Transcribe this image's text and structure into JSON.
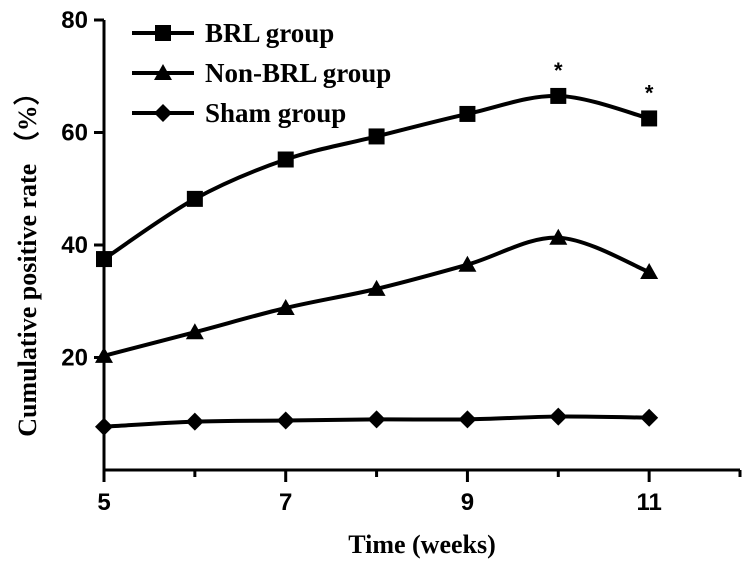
{
  "chart_data": {
    "type": "line",
    "title": "",
    "xlabel": "Time (weeks)",
    "ylabel": "Cumulative positive rate （%）",
    "xlim": [
      5,
      12
    ],
    "ylim": [
      0,
      80
    ],
    "xticks": [
      5,
      7,
      9,
      11
    ],
    "yticks": [
      20,
      40,
      60,
      80
    ],
    "x": [
      5,
      6,
      7,
      8,
      9,
      10,
      11
    ],
    "grid": false,
    "legend_position": "top-left",
    "series": [
      {
        "name": "BRL group",
        "marker": "square",
        "values": [
          37.5,
          48.2,
          55.2,
          59.3,
          63.3,
          66.5,
          62.5
        ]
      },
      {
        "name": "Non-BRL group",
        "marker": "triangle",
        "values": [
          20.3,
          24.5,
          28.8,
          32.2,
          36.5,
          41.3,
          35.2
        ]
      },
      {
        "name": "Sham group",
        "marker": "diamond",
        "values": [
          7.7,
          8.6,
          8.8,
          9.0,
          9.0,
          9.5,
          9.3
        ]
      }
    ],
    "annotations": [
      {
        "text": "*",
        "x": 10,
        "y": 66.5
      },
      {
        "text": "*",
        "x": 11,
        "y": 62.5
      }
    ],
    "line_color": "#000000"
  }
}
